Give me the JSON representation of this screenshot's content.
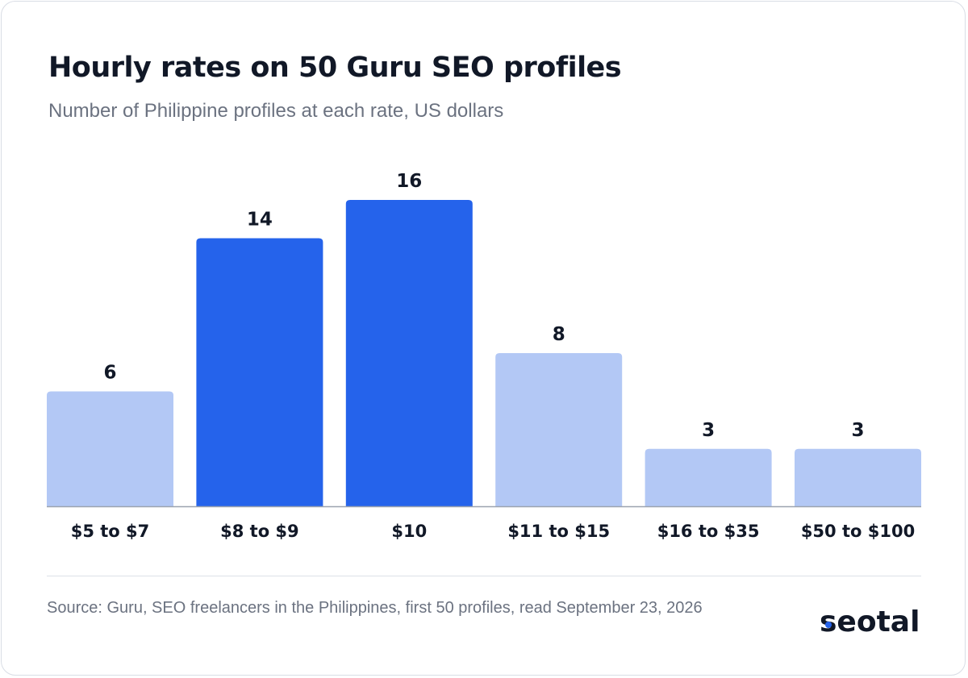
{
  "header": {
    "title": "Hourly rates on 50 Guru SEO profiles",
    "subtitle": "Number of Philippine profiles at each rate, US dollars"
  },
  "chart_data": {
    "type": "bar",
    "title": "Hourly rates on 50 Guru SEO profiles",
    "subtitle": "Number of Philippine profiles at each rate, US dollars",
    "categories": [
      "$5 to $7",
      "$8 to $9",
      "$10",
      "$11 to $15",
      "$16 to $35",
      "$50 to $100"
    ],
    "values": [
      6,
      14,
      16,
      8,
      3,
      3
    ],
    "highlighted": [
      false,
      true,
      true,
      false,
      false,
      false
    ],
    "ylim": [
      0,
      16
    ],
    "grid": false,
    "data_labels": true,
    "colors": {
      "highlight": "#2563eb",
      "default": "#b3c8f5",
      "axis": "#9ca3af"
    }
  },
  "footer": {
    "source": "Source: Guru, SEO freelancers in the Philippines, first 50 profiles, read September 23, 2026",
    "logo_text": "seotal",
    "logo_accent": "#2563eb"
  }
}
